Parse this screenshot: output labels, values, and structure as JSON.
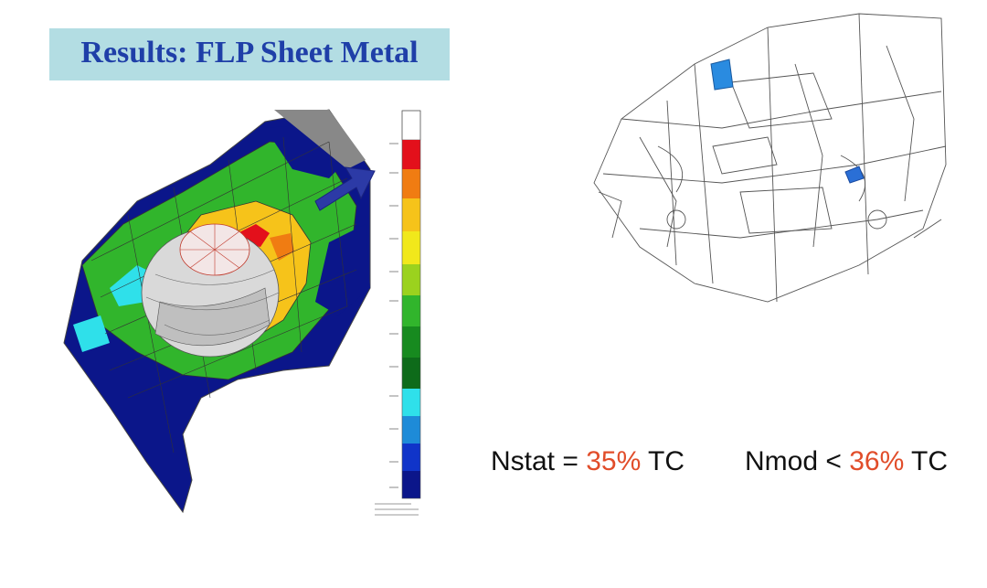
{
  "title": "Results: FLP Sheet Metal",
  "colors": {
    "title_bg": "#b3dde3",
    "title_text": "#1f3fa8",
    "highlight": "#e14d2a"
  },
  "fea_plot": {
    "legend_colors": [
      "#ffffff",
      "#e3101b",
      "#f07c12",
      "#f6c31a",
      "#f1e81b",
      "#9bd21e",
      "#31b52c",
      "#178a1f",
      "#0e6b1a",
      "#2fe0ea",
      "#1e8bd8",
      "#1034c9",
      "#0b168a"
    ],
    "arrow_icon": "arrow-pointer-icon"
  },
  "car_icon": "vehicle-wireframe-icon",
  "equations": {
    "nstat": {
      "label": "Nstat = ",
      "value": "35%",
      "unit": " TC"
    },
    "nmod": {
      "label": "Nmod < ",
      "value": "36%",
      "unit": " TC"
    }
  }
}
